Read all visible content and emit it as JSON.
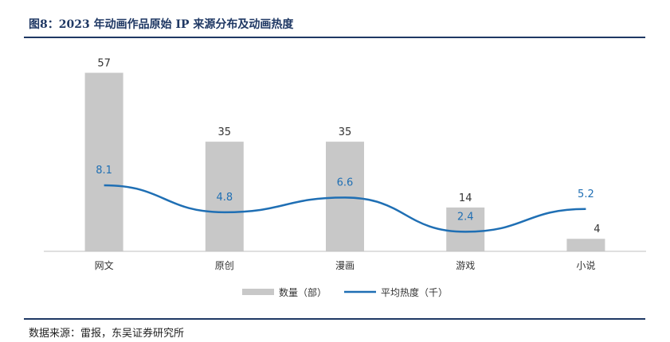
{
  "title": "图8：2023 年动画作品原始 IP 来源分布及动画热度",
  "source": "数据来源：雷报，东吴证券研究所",
  "colors": {
    "bar": "#c8c8c8",
    "line": "#1f6fb4",
    "label_bar": "#333333",
    "label_line": "#1f6fb4",
    "rule": "#1f3864"
  },
  "chart_data": {
    "type": "bar",
    "categories": [
      "网文",
      "原创",
      "漫画",
      "游戏",
      "小说"
    ],
    "series": [
      {
        "name": "数量（部）",
        "type": "bar",
        "values": [
          57,
          35,
          35,
          14,
          4
        ],
        "ylim": [
          0,
          65
        ]
      },
      {
        "name": "平均热度（千）",
        "type": "line",
        "values": [
          8.1,
          4.8,
          6.6,
          2.4,
          5.2
        ],
        "ylim": [
          0,
          25
        ]
      }
    ],
    "legend": "bottom",
    "grid": false
  }
}
